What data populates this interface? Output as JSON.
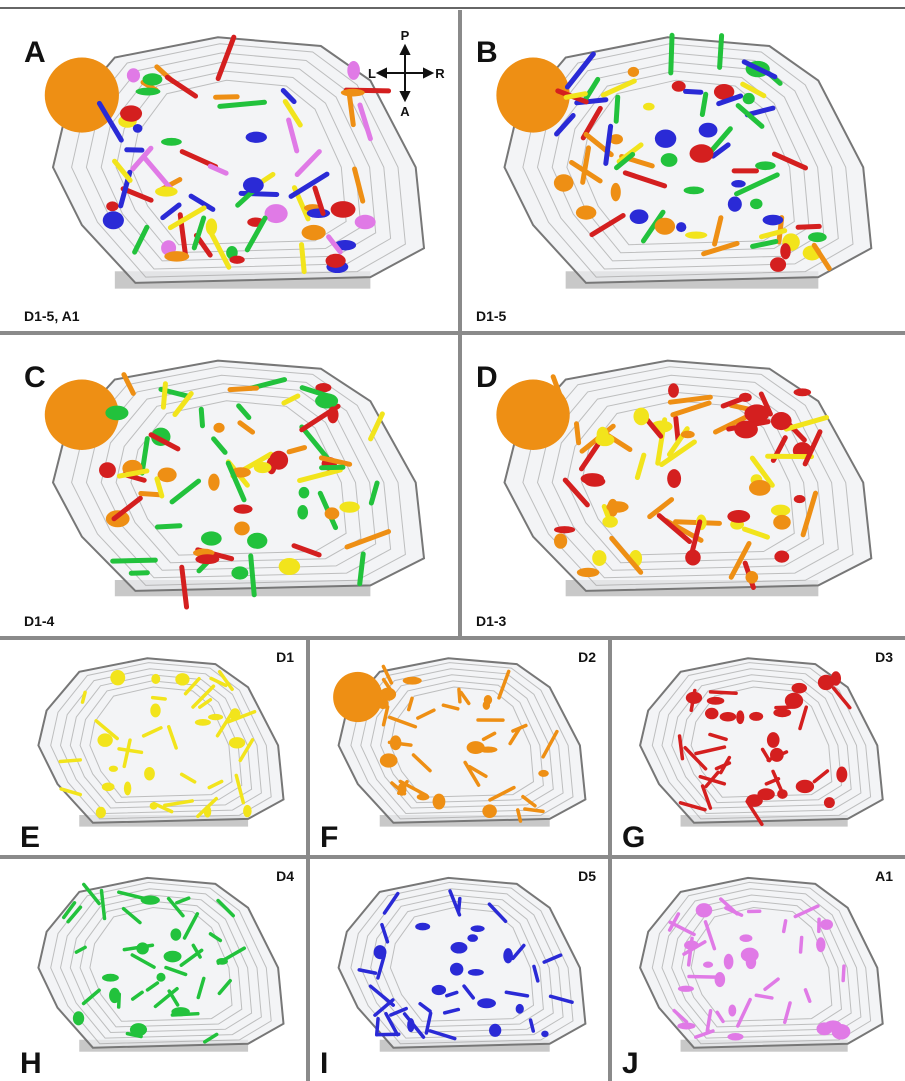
{
  "compass": {
    "up": "P",
    "down": "A",
    "left": "L",
    "right": "R"
  },
  "panels": [
    {
      "letter": "A",
      "label": "D1-5, A1"
    },
    {
      "letter": "B",
      "label": "D1-5"
    },
    {
      "letter": "C",
      "label": "D1-4"
    },
    {
      "letter": "D",
      "label": "D1-3"
    },
    {
      "letter": "E",
      "label": "D1"
    },
    {
      "letter": "F",
      "label": "D2"
    },
    {
      "letter": "G",
      "label": "D3"
    },
    {
      "letter": "H",
      "label": "D4"
    },
    {
      "letter": "I",
      "label": "D5"
    },
    {
      "letter": "J",
      "label": "A1"
    }
  ]
}
